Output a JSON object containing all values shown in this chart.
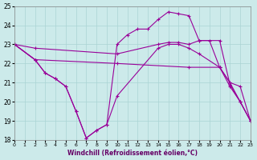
{
  "xlabel": "Windchill (Refroidissement éolien,°C)",
  "xlim": [
    0,
    23
  ],
  "ylim": [
    18,
    25
  ],
  "yticks": [
    18,
    19,
    20,
    21,
    22,
    23,
    24,
    25
  ],
  "xticks": [
    0,
    1,
    2,
    3,
    4,
    5,
    6,
    7,
    8,
    9,
    10,
    11,
    12,
    13,
    14,
    15,
    16,
    17,
    18,
    19,
    20,
    21,
    22,
    23
  ],
  "bg_color": "#cceaea",
  "grid_color": "#aad4d4",
  "line_color": "#990099",
  "lines": [
    {
      "x": [
        0,
        2,
        10,
        14,
        15,
        16,
        17,
        18,
        20,
        21,
        22,
        23
      ],
      "y": [
        23.0,
        22.8,
        22.5,
        23.0,
        23.1,
        23.1,
        23.0,
        23.2,
        23.2,
        20.9,
        20.0,
        19.0
      ]
    },
    {
      "x": [
        0,
        2,
        10,
        17,
        20,
        21,
        22,
        23
      ],
      "y": [
        23.0,
        22.2,
        22.0,
        21.8,
        21.8,
        21.0,
        20.0,
        19.0
      ]
    },
    {
      "x": [
        0,
        2,
        3,
        4,
        5,
        6,
        7,
        8,
        9,
        10,
        11,
        12,
        13,
        14,
        15,
        16,
        17,
        18,
        19,
        20,
        21,
        22,
        23
      ],
      "y": [
        23.0,
        22.2,
        21.5,
        21.2,
        20.8,
        19.5,
        18.1,
        18.5,
        18.8,
        23.0,
        23.5,
        23.8,
        23.8,
        24.3,
        24.7,
        24.6,
        24.5,
        23.2,
        23.2,
        21.8,
        20.8,
        20.0,
        19.0
      ]
    },
    {
      "x": [
        0,
        2,
        3,
        4,
        5,
        6,
        7,
        8,
        9,
        10,
        14,
        15,
        16,
        17,
        18,
        20,
        21,
        22,
        23
      ],
      "y": [
        23.0,
        22.2,
        21.5,
        21.2,
        20.8,
        19.5,
        18.1,
        18.5,
        18.8,
        20.3,
        22.8,
        23.0,
        23.0,
        22.8,
        22.5,
        21.8,
        21.0,
        20.8,
        19.0
      ]
    }
  ]
}
